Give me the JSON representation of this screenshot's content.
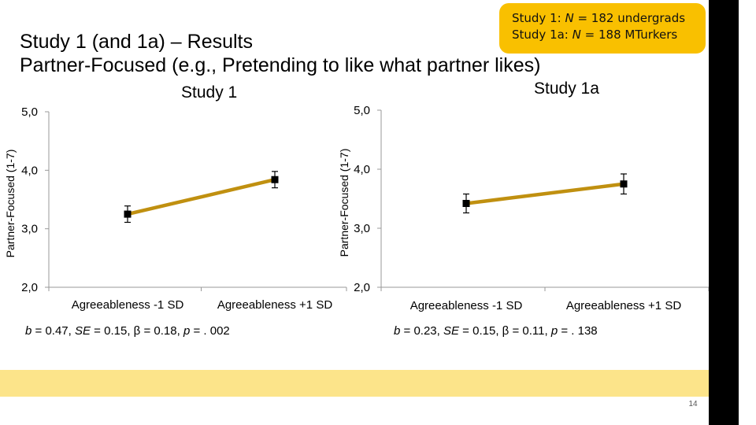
{
  "slide": {
    "title_line1": "Study 1 (and 1a) – Results",
    "title_line2": "Partner-Focused (e.g., Pretending to like what partner likes)",
    "callout": {
      "line1_prefix": "Study 1: ",
      "line1_n": "N",
      "line1_suffix": " = 182 undergrads",
      "line2_prefix": "Study 1a: ",
      "line2_n": "N",
      "line2_suffix": " = 188 MTurkers"
    },
    "page_number": "14",
    "colors": {
      "accent": "#F9C000",
      "band": "#FCE48A",
      "line": "#C09010",
      "marker": "#000000"
    }
  },
  "panels": [
    {
      "title": "Study 1",
      "stats": {
        "b": "0.47",
        "se": "0.15",
        "beta": "0.18",
        "p": ". 002"
      }
    },
    {
      "title": "Study 1a",
      "stats": {
        "b": "0.23",
        "se": "0.15",
        "beta": "0.11",
        "p": ". 138"
      }
    }
  ],
  "chart_data": [
    {
      "type": "line",
      "title": "Study 1",
      "categories": [
        "Agreeableness -1 SD",
        "Agreeableness +1 SD"
      ],
      "values": [
        3.25,
        3.84
      ],
      "error": [
        0.14,
        0.14
      ],
      "ylabel": "Partner-Focused (1-7)",
      "ylim": [
        2.0,
        5.0
      ],
      "yticks": [
        2.0,
        3.0,
        4.0,
        5.0
      ],
      "ytick_labels": [
        "2,0",
        "3,0",
        "4,0",
        "5,0"
      ],
      "grid": false
    },
    {
      "type": "line",
      "title": "Study 1a",
      "categories": [
        "Agreeableness  -1 SD",
        "Agreeableness  +1 SD"
      ],
      "values": [
        3.42,
        3.75
      ],
      "error": [
        0.16,
        0.17
      ],
      "ylabel": "Partner-Focused (1-7)",
      "ylim": [
        2.0,
        5.0
      ],
      "yticks": [
        2.0,
        3.0,
        4.0,
        5.0
      ],
      "ytick_labels": [
        "2,0",
        "3,0",
        "4,0",
        "5,0"
      ],
      "grid": false
    }
  ]
}
